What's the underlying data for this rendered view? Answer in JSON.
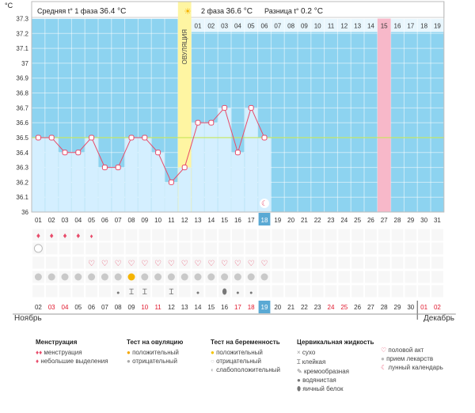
{
  "header": {
    "unit": "°C",
    "phase1_label": "Средняя t° 1 фаза",
    "phase1_value": "36.4 °C",
    "phase2_label": "2 фаза",
    "phase2_value": "36.6 °C",
    "diff_label": "Разница t°",
    "diff_value": "0.2 °C",
    "ovulation_label": "ОВУЛЯЦИЯ"
  },
  "months": {
    "start": "Ноябрь",
    "end": "Декабрь"
  },
  "chart_data": {
    "type": "line",
    "ylabel": "°C",
    "ylim": [
      36,
      37.3
    ],
    "yticks": [
      "37.3",
      "37.2",
      "37.1",
      "37",
      "36.9",
      "36.8",
      "36.7",
      "36.6",
      "36.5",
      "36.4",
      "36.3",
      "36.2",
      "36.1",
      "36"
    ],
    "cycle_days": [
      "01",
      "02",
      "03",
      "04",
      "05",
      "06",
      "07",
      "08",
      "09",
      "10",
      "11",
      "12",
      "13",
      "14",
      "15",
      "16",
      "17",
      "18",
      "19",
      "20",
      "21",
      "22",
      "23",
      "24",
      "25",
      "26",
      "27",
      "28",
      "29",
      "30",
      "31"
    ],
    "top_days": [
      "01",
      "02",
      "03",
      "04",
      "05",
      "06",
      "07",
      "08",
      "09",
      "10",
      "11",
      "12",
      "13",
      "14",
      "15",
      "16",
      "17",
      "18",
      "19"
    ],
    "top_highlight": "15",
    "current_day": "18",
    "dates": [
      "02",
      "03",
      "04",
      "05",
      "06",
      "07",
      "08",
      "09",
      "10",
      "11",
      "12",
      "13",
      "14",
      "15",
      "16",
      "17",
      "18",
      "19",
      "20",
      "21",
      "22",
      "23",
      "24",
      "25",
      "26",
      "27",
      "28",
      "29",
      "30",
      "01",
      "02"
    ],
    "weekend_dates": [
      "03",
      "04",
      "10",
      "11",
      "17",
      "18",
      "24",
      "25",
      "01",
      "02"
    ],
    "ovulation_day": 12,
    "pink_day": 27,
    "coverline": 36.5,
    "temps": [
      36.5,
      36.5,
      36.4,
      36.4,
      36.5,
      36.3,
      36.3,
      36.5,
      36.5,
      36.4,
      36.2,
      36.3,
      36.6,
      36.6,
      36.7,
      36.4,
      36.7,
      36.5
    ]
  },
  "rows": {
    "menstruation": [
      "heavy",
      "heavy",
      "heavy",
      "heavy",
      "light"
    ],
    "pregnancy_negative_day": 1,
    "hearts_days": [
      5,
      6,
      7,
      8,
      9,
      10,
      11,
      12,
      13,
      14,
      15,
      16,
      17,
      18
    ],
    "ovulation_test_days": [
      1,
      2,
      3,
      4,
      5,
      6,
      7,
      8,
      9,
      10,
      11,
      12,
      13,
      14,
      15,
      16,
      17,
      18
    ],
    "positive_ovulation_days": [
      8
    ],
    "fluid": {
      "7": "watery",
      "8": "sticky",
      "9": "sticky",
      "11": "sticky",
      "13": "watery",
      "15": "eggwhite",
      "16": "watery",
      "17": "watery"
    }
  },
  "legend": {
    "menstruation": {
      "title": "Менструация",
      "items": [
        "менструация",
        "небольшие выделения"
      ]
    },
    "ovulation_test": {
      "title": "Тест на овуляцию",
      "items": [
        "положительный",
        "отрицательный"
      ]
    },
    "pregnancy_test": {
      "title": "Тест на беременность",
      "items": [
        "положительный",
        "отрицательный",
        "слабоположительный"
      ]
    },
    "cervical_fluid": {
      "title": "Цервикальная жидкость",
      "items": [
        "сухо",
        "клейкая",
        "кремообразная",
        "водянистая",
        "яичный белок"
      ]
    },
    "other": {
      "items": [
        "половой акт",
        "прием лекарств",
        "лунный календарь"
      ]
    }
  },
  "colors": {
    "grid_bg": "#8dd3f0",
    "bar": "#d4efff",
    "ovulation": "#fef5a2",
    "pink": "#f7b8c9",
    "line": "#e84b6a",
    "coverline": "#c8e85a",
    "accent": "#5aa9d4"
  }
}
